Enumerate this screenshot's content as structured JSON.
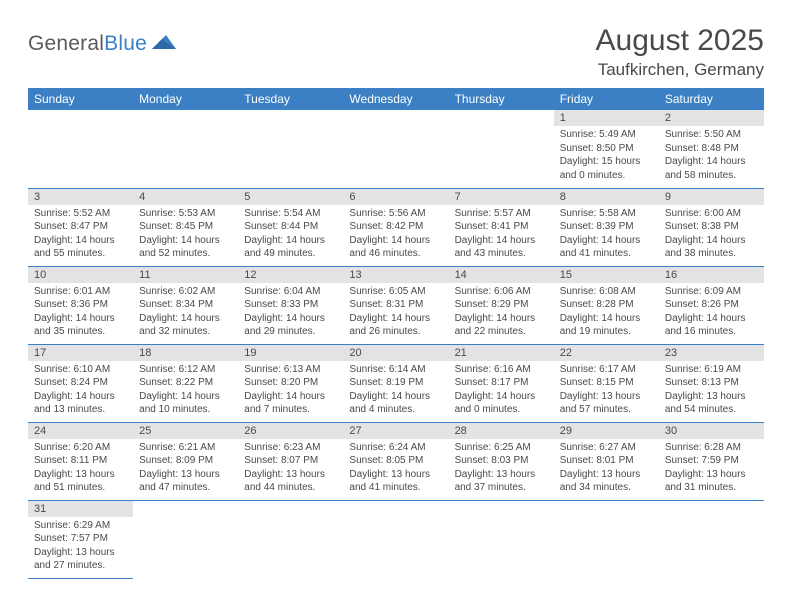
{
  "logo": {
    "word1": "General",
    "word2": "Blue"
  },
  "title": "August 2025",
  "location": "Taufkirchen, Germany",
  "colors": {
    "header_bg": "#3b7fc4",
    "header_text": "#ffffff",
    "daynum_bg": "#e3e3e3",
    "text": "#4a4a4a",
    "rule": "#3b7fc4",
    "page_bg": "#ffffff"
  },
  "typography": {
    "title_fontsize": 30,
    "location_fontsize": 17,
    "header_fontsize": 12,
    "daynum_fontsize": 11,
    "body_fontsize": 10
  },
  "weekdays": [
    "Sunday",
    "Monday",
    "Tuesday",
    "Wednesday",
    "Thursday",
    "Friday",
    "Saturday"
  ],
  "weeks": [
    [
      null,
      null,
      null,
      null,
      null,
      {
        "n": "1",
        "sunrise": "5:49 AM",
        "sunset": "8:50 PM",
        "daylight_h": "15",
        "daylight_m": "0"
      },
      {
        "n": "2",
        "sunrise": "5:50 AM",
        "sunset": "8:48 PM",
        "daylight_h": "14",
        "daylight_m": "58"
      }
    ],
    [
      {
        "n": "3",
        "sunrise": "5:52 AM",
        "sunset": "8:47 PM",
        "daylight_h": "14",
        "daylight_m": "55"
      },
      {
        "n": "4",
        "sunrise": "5:53 AM",
        "sunset": "8:45 PM",
        "daylight_h": "14",
        "daylight_m": "52"
      },
      {
        "n": "5",
        "sunrise": "5:54 AM",
        "sunset": "8:44 PM",
        "daylight_h": "14",
        "daylight_m": "49"
      },
      {
        "n": "6",
        "sunrise": "5:56 AM",
        "sunset": "8:42 PM",
        "daylight_h": "14",
        "daylight_m": "46"
      },
      {
        "n": "7",
        "sunrise": "5:57 AM",
        "sunset": "8:41 PM",
        "daylight_h": "14",
        "daylight_m": "43"
      },
      {
        "n": "8",
        "sunrise": "5:58 AM",
        "sunset": "8:39 PM",
        "daylight_h": "14",
        "daylight_m": "41"
      },
      {
        "n": "9",
        "sunrise": "6:00 AM",
        "sunset": "8:38 PM",
        "daylight_h": "14",
        "daylight_m": "38"
      }
    ],
    [
      {
        "n": "10",
        "sunrise": "6:01 AM",
        "sunset": "8:36 PM",
        "daylight_h": "14",
        "daylight_m": "35"
      },
      {
        "n": "11",
        "sunrise": "6:02 AM",
        "sunset": "8:34 PM",
        "daylight_h": "14",
        "daylight_m": "32"
      },
      {
        "n": "12",
        "sunrise": "6:04 AM",
        "sunset": "8:33 PM",
        "daylight_h": "14",
        "daylight_m": "29"
      },
      {
        "n": "13",
        "sunrise": "6:05 AM",
        "sunset": "8:31 PM",
        "daylight_h": "14",
        "daylight_m": "26"
      },
      {
        "n": "14",
        "sunrise": "6:06 AM",
        "sunset": "8:29 PM",
        "daylight_h": "14",
        "daylight_m": "22"
      },
      {
        "n": "15",
        "sunrise": "6:08 AM",
        "sunset": "8:28 PM",
        "daylight_h": "14",
        "daylight_m": "19"
      },
      {
        "n": "16",
        "sunrise": "6:09 AM",
        "sunset": "8:26 PM",
        "daylight_h": "14",
        "daylight_m": "16"
      }
    ],
    [
      {
        "n": "17",
        "sunrise": "6:10 AM",
        "sunset": "8:24 PM",
        "daylight_h": "14",
        "daylight_m": "13"
      },
      {
        "n": "18",
        "sunrise": "6:12 AM",
        "sunset": "8:22 PM",
        "daylight_h": "14",
        "daylight_m": "10"
      },
      {
        "n": "19",
        "sunrise": "6:13 AM",
        "sunset": "8:20 PM",
        "daylight_h": "14",
        "daylight_m": "7"
      },
      {
        "n": "20",
        "sunrise": "6:14 AM",
        "sunset": "8:19 PM",
        "daylight_h": "14",
        "daylight_m": "4"
      },
      {
        "n": "21",
        "sunrise": "6:16 AM",
        "sunset": "8:17 PM",
        "daylight_h": "14",
        "daylight_m": "0"
      },
      {
        "n": "22",
        "sunrise": "6:17 AM",
        "sunset": "8:15 PM",
        "daylight_h": "13",
        "daylight_m": "57"
      },
      {
        "n": "23",
        "sunrise": "6:19 AM",
        "sunset": "8:13 PM",
        "daylight_h": "13",
        "daylight_m": "54"
      }
    ],
    [
      {
        "n": "24",
        "sunrise": "6:20 AM",
        "sunset": "8:11 PM",
        "daylight_h": "13",
        "daylight_m": "51"
      },
      {
        "n": "25",
        "sunrise": "6:21 AM",
        "sunset": "8:09 PM",
        "daylight_h": "13",
        "daylight_m": "47"
      },
      {
        "n": "26",
        "sunrise": "6:23 AM",
        "sunset": "8:07 PM",
        "daylight_h": "13",
        "daylight_m": "44"
      },
      {
        "n": "27",
        "sunrise": "6:24 AM",
        "sunset": "8:05 PM",
        "daylight_h": "13",
        "daylight_m": "41"
      },
      {
        "n": "28",
        "sunrise": "6:25 AM",
        "sunset": "8:03 PM",
        "daylight_h": "13",
        "daylight_m": "37"
      },
      {
        "n": "29",
        "sunrise": "6:27 AM",
        "sunset": "8:01 PM",
        "daylight_h": "13",
        "daylight_m": "34"
      },
      {
        "n": "30",
        "sunrise": "6:28 AM",
        "sunset": "7:59 PM",
        "daylight_h": "13",
        "daylight_m": "31"
      }
    ],
    [
      {
        "n": "31",
        "sunrise": "6:29 AM",
        "sunset": "7:57 PM",
        "daylight_h": "13",
        "daylight_m": "27"
      },
      null,
      null,
      null,
      null,
      null,
      null
    ]
  ]
}
